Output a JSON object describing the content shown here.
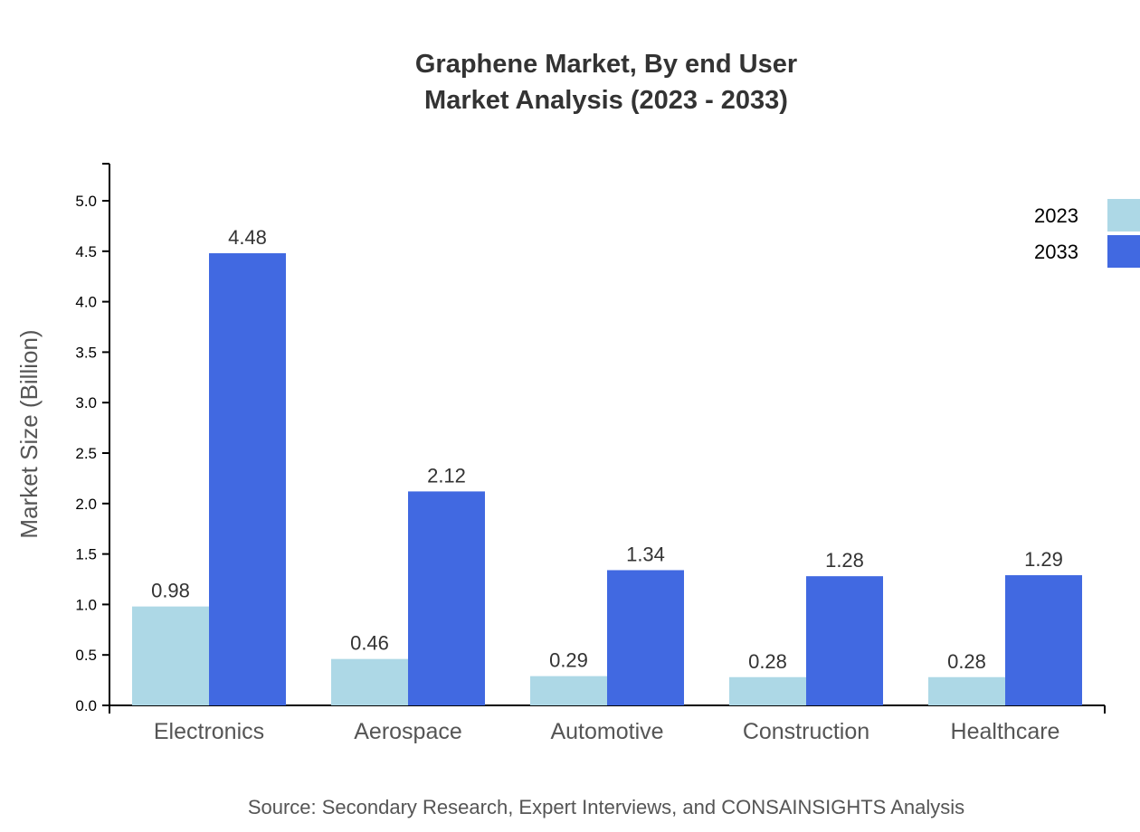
{
  "chart_data": {
    "type": "bar",
    "title": "Graphene Market, By end User",
    "subtitle": "Market Analysis (2023 - 2033)",
    "xlabel": "",
    "ylabel": "Market Size (Billion)",
    "ylim": [
      0,
      5.3
    ],
    "yticks": [
      "0.0",
      "0.5",
      "1.0",
      "1.5",
      "2.0",
      "2.5",
      "3.0",
      "3.5",
      "4.0",
      "4.5",
      "5.0"
    ],
    "categories": [
      "Electronics",
      "Aerospace",
      "Automotive",
      "Construction",
      "Healthcare"
    ],
    "series": [
      {
        "name": "2023",
        "color": "#add8e6",
        "values": [
          0.98,
          0.46,
          0.29,
          0.28,
          0.28
        ],
        "labels": [
          "0.98",
          "0.46",
          "0.29",
          "0.28",
          "0.28"
        ]
      },
      {
        "name": "2033",
        "color": "#4169e1",
        "values": [
          4.48,
          2.12,
          1.34,
          1.28,
          1.29
        ],
        "labels": [
          "4.48",
          "2.12",
          "1.34",
          "1.28",
          "1.29"
        ]
      }
    ],
    "grid": false,
    "legend": "top-right",
    "source": "Source: Secondary Research, Expert Interviews, and CONSAINSIGHTS Analysis"
  }
}
